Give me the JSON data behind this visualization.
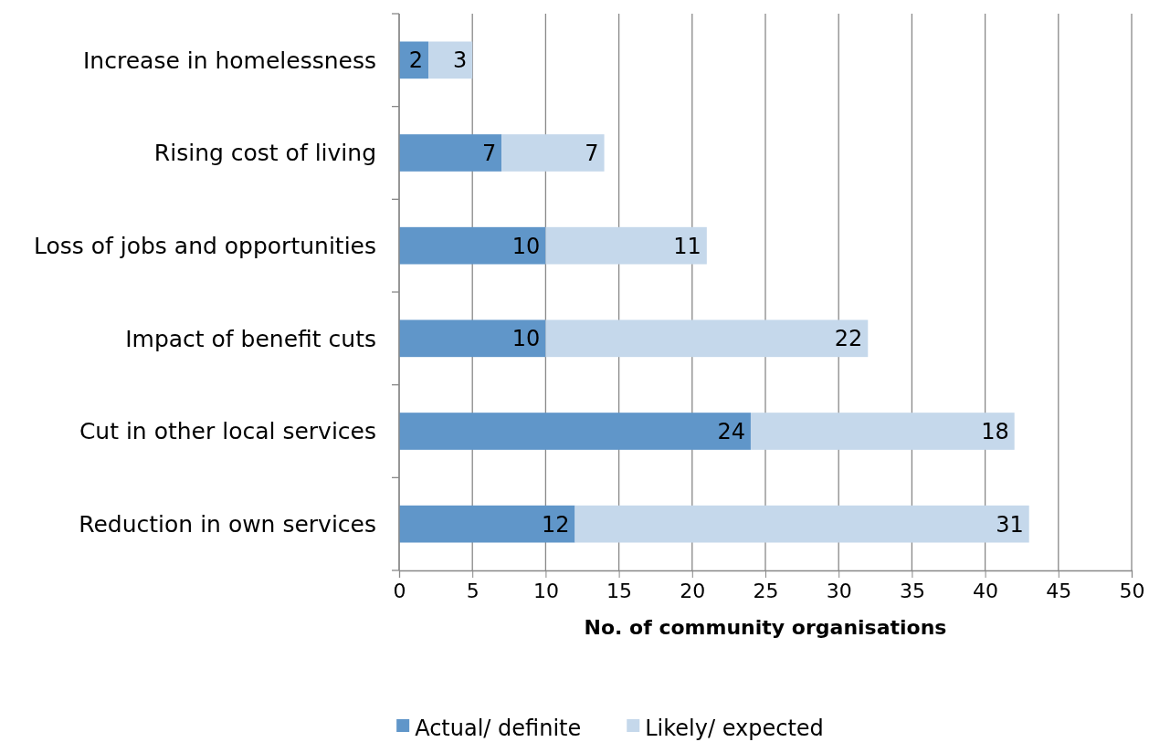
{
  "chart_data": {
    "type": "bar",
    "orientation": "horizontal",
    "stacked": true,
    "xlabel": "No. of community organisations",
    "categories": [
      "Increase in homelessness",
      "Rising cost of living",
      "Loss of jobs and opportunities",
      "Impact of benefit cuts",
      "Cut in other local services",
      "Reduction in own services"
    ],
    "series": [
      {
        "name": "Actual/ definite",
        "color": "#6096c9",
        "values": [
          2,
          7,
          10,
          10,
          24,
          12
        ]
      },
      {
        "name": "Likely/ expected",
        "color": "#c5d8eb",
        "values": [
          3,
          7,
          11,
          22,
          18,
          31
        ]
      }
    ],
    "xlim": [
      0,
      50
    ],
    "xticks": [
      0,
      5,
      10,
      15,
      20,
      25,
      30,
      35,
      40,
      45,
      50
    ],
    "grid": "x",
    "legend": "bottom",
    "data_labels": true
  }
}
